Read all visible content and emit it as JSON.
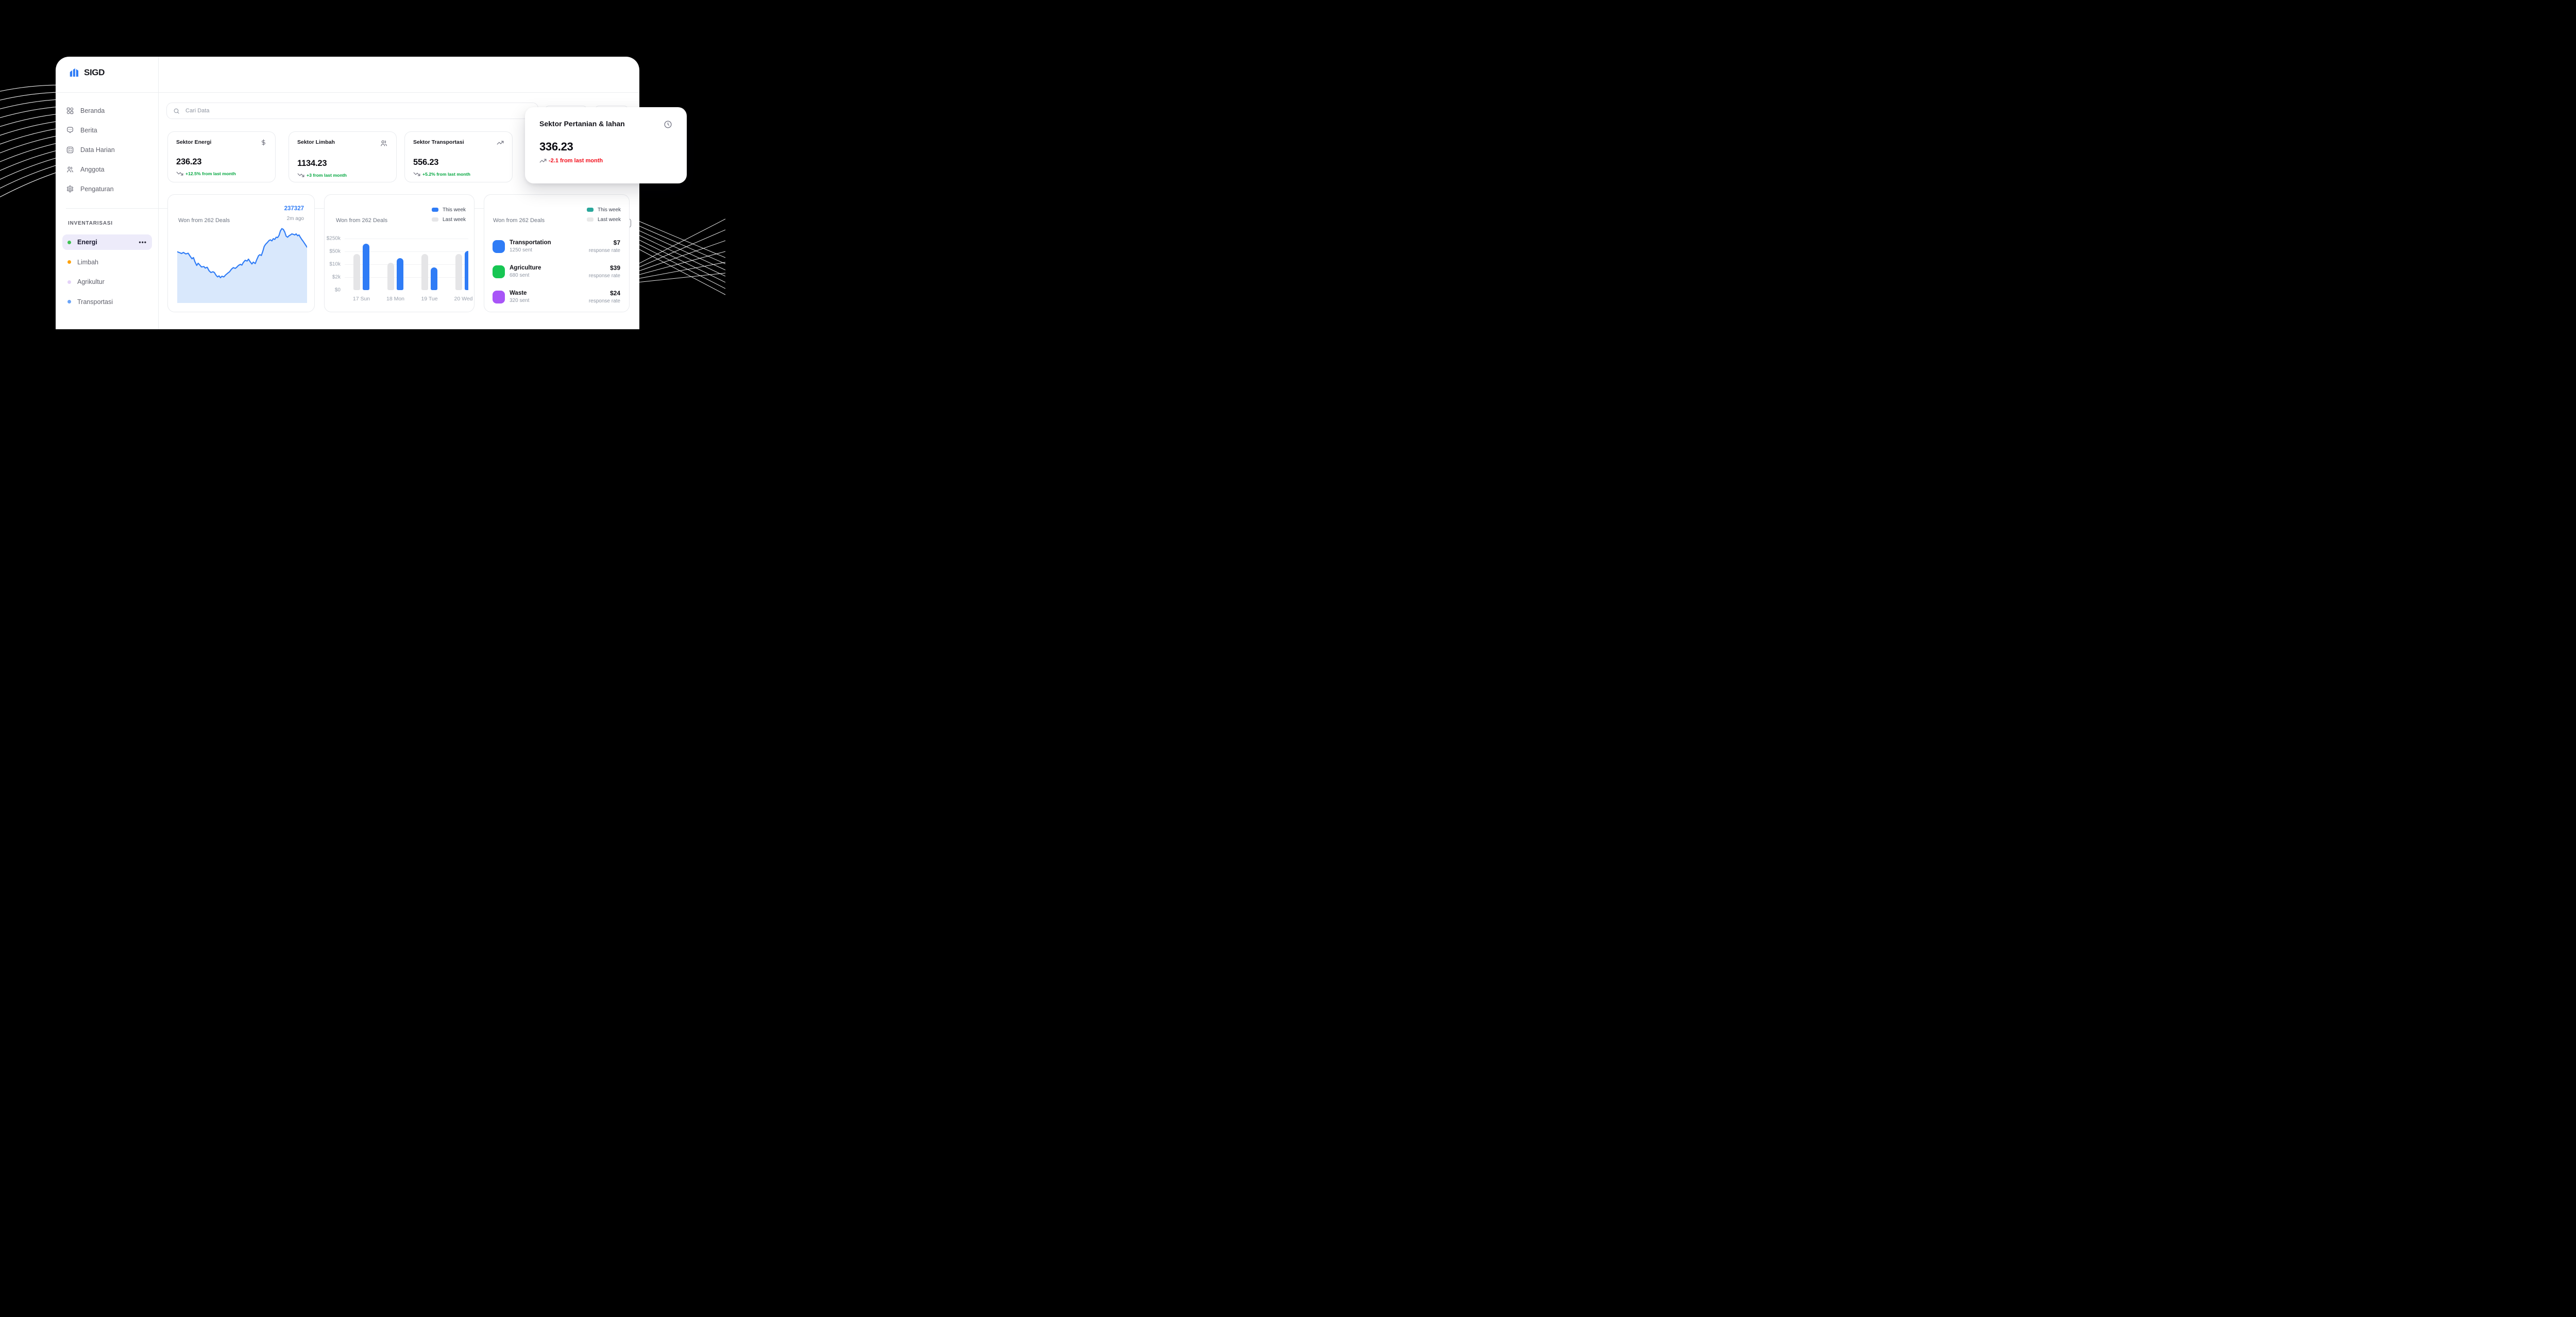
{
  "app": {
    "brand": "SIGD"
  },
  "colors": {
    "accent_blue": "#2f7cf6",
    "fill_blue": "#d9e8fc",
    "green": "#00a63e",
    "red": "#f20d1a",
    "teal": "#2aa79b",
    "gray_bar": "#e5e5e7"
  },
  "sidebar": {
    "menu": [
      {
        "id": "beranda",
        "label": "Beranda",
        "icon": "grid"
      },
      {
        "id": "berita",
        "label": "Berita",
        "icon": "chat"
      },
      {
        "id": "data-harian",
        "label": "Data Harian",
        "icon": "checklist"
      },
      {
        "id": "anggota",
        "label": "Anggota",
        "icon": "users"
      },
      {
        "id": "pengaturan",
        "label": "Pengaturan",
        "icon": "gear"
      }
    ],
    "section_label": "INVENTARISASI",
    "inventory": [
      {
        "id": "energi",
        "label": "Energi",
        "dot": "#3fc251",
        "active": true
      },
      {
        "id": "limbah",
        "label": "Limbah",
        "dot": "#ffa20d",
        "active": false
      },
      {
        "id": "agrikultur",
        "label": "Agrikultur",
        "dot": "#e4d2f8",
        "active": false
      },
      {
        "id": "transportasi",
        "label": "Transportasi",
        "dot": "#6aa4f8",
        "active": false
      }
    ]
  },
  "search": {
    "placeholder": "Cari Data"
  },
  "stat_cards": [
    {
      "title": "Sektor Energi",
      "icon": "dollar",
      "value": "236.23",
      "delta": "+12.5% from last month",
      "trend": "down",
      "delta_color": "#00a63e"
    },
    {
      "title": "Sektor Limbah",
      "icon": "users",
      "value": "1134.23",
      "delta": "+3 from last month",
      "trend": "down",
      "delta_color": "#00a63e"
    },
    {
      "title": "Sektor Transportasi",
      "icon": "trend-up",
      "value": "556.23",
      "delta": "+5.2% from last month",
      "trend": "down",
      "delta_color": "#00a63e"
    }
  ],
  "highlight_card": {
    "title": "Sektor Pertanian & lahan",
    "icon": "clock",
    "value": "336.23",
    "delta": "-2.1 from last month",
    "trend": "up",
    "delta_color": "#f20d1a"
  },
  "chart_data": [
    {
      "type": "area",
      "title": "Won from 262 Deals",
      "current_value": "237327",
      "updated": "2m ago",
      "line_color": "#2f7cf6",
      "fill_color": "#d9e8fc",
      "grid": false,
      "points_pct": [
        [
          0,
          33.7
        ],
        [
          2,
          35
        ],
        [
          3.3,
          36
        ],
        [
          4.8,
          34.6
        ],
        [
          6.6,
          36.5
        ],
        [
          8.4,
          35.6
        ],
        [
          10.3,
          40.4
        ],
        [
          11.4,
          42.8
        ],
        [
          12.5,
          41.3
        ],
        [
          13.6,
          46.6
        ],
        [
          15,
          51.4
        ],
        [
          16.1,
          48.6
        ],
        [
          17.2,
          50.5
        ],
        [
          18.7,
          53.4
        ],
        [
          20.5,
          52.9
        ],
        [
          21.6,
          54.8
        ],
        [
          23.1,
          53.8
        ],
        [
          24.5,
          58.2
        ],
        [
          26,
          60.6
        ],
        [
          27.5,
          59.6
        ],
        [
          28.6,
          60.6
        ],
        [
          30,
          64.4
        ],
        [
          31.1,
          66.3
        ],
        [
          32.2,
          64.9
        ],
        [
          33.3,
          67.3
        ],
        [
          34.4,
          65.4
        ],
        [
          35.9,
          66.3
        ],
        [
          37.4,
          63.5
        ],
        [
          38.8,
          61.5
        ],
        [
          40.3,
          59.6
        ],
        [
          41.8,
          56.3
        ],
        [
          43.2,
          54.3
        ],
        [
          44.7,
          55.3
        ],
        [
          45.8,
          53.8
        ],
        [
          47.2,
          51.4
        ],
        [
          48.7,
          50
        ],
        [
          49.8,
          51
        ],
        [
          50.9,
          47.6
        ],
        [
          52.4,
          44.7
        ],
        [
          53.8,
          45.7
        ],
        [
          54.9,
          43.3
        ],
        [
          56,
          46.2
        ],
        [
          57.5,
          49.5
        ],
        [
          58.6,
          47.1
        ],
        [
          60.1,
          49
        ],
        [
          61.2,
          44.2
        ],
        [
          62.6,
          38.9
        ],
        [
          63.7,
          37.5
        ],
        [
          64.8,
          38.5
        ],
        [
          65.9,
          33.2
        ],
        [
          67,
          26.9
        ],
        [
          68.1,
          24
        ],
        [
          69.2,
          22.1
        ],
        [
          70.7,
          19.2
        ],
        [
          71.8,
          18.3
        ],
        [
          72.9,
          19.7
        ],
        [
          74,
          16.8
        ],
        [
          75.1,
          17.8
        ],
        [
          76.2,
          14.9
        ],
        [
          77.3,
          15.4
        ],
        [
          78.4,
          12.5
        ],
        [
          79.5,
          6.7
        ],
        [
          80.6,
          3.8
        ],
        [
          81.7,
          4.8
        ],
        [
          82.8,
          8.2
        ],
        [
          83.9,
          13.5
        ],
        [
          85,
          14.9
        ],
        [
          86.1,
          13
        ],
        [
          87.2,
          12
        ],
        [
          88.3,
          10.6
        ],
        [
          89.4,
          11.2
        ],
        [
          90.5,
          12
        ],
        [
          91.6,
          10.6
        ],
        [
          92.7,
          13
        ],
        [
          93.8,
          12
        ],
        [
          94.8,
          14.9
        ],
        [
          95.9,
          17.8
        ],
        [
          97,
          20.2
        ],
        [
          98.5,
          24
        ],
        [
          100,
          27.9
        ]
      ]
    },
    {
      "type": "bar",
      "title": "Won from 262 Deals",
      "legend": [
        {
          "label": "This week",
          "color": "#2f7cf6"
        },
        {
          "label": "Last week",
          "color": "#e5e5e7"
        }
      ],
      "categories": [
        "17 Sun",
        "18 Mon",
        "19 Tue",
        "20 Wed"
      ],
      "series": [
        {
          "name": "Last week",
          "color": "#e5e5e7",
          "values": [
            42000,
            15000,
            42000,
            42000
          ]
        },
        {
          "name": "This week",
          "color": "#2f7cf6",
          "values": [
            170000,
            30000,
            8000,
            60000
          ]
        }
      ],
      "y_ticks": [
        {
          "label": "$250k",
          "value": 250000
        },
        {
          "label": "$50k",
          "value": 50000
        },
        {
          "label": "$10k",
          "value": 10000
        },
        {
          "label": "$2k",
          "value": 2000
        },
        {
          "label": "$0",
          "value": 0
        }
      ],
      "scale_breakpoints": [
        0,
        2000,
        10000,
        50000,
        250000
      ],
      "grid": true,
      "legend_position": "top-right"
    },
    {
      "type": "table",
      "title": "Won from 262 Deals",
      "legend": [
        {
          "label": "This week",
          "color": "#2aa79b"
        },
        {
          "label": "Last week",
          "color": "#e8e8e8"
        }
      ],
      "rows": [
        {
          "name": "Transportation",
          "sent": "1250 sent",
          "value": "$7",
          "value_sub": "response rate",
          "color": "#2f7cf6"
        },
        {
          "name": "Agriculture",
          "sent": "680 sent",
          "value": "$39",
          "value_sub": "response rate",
          "color": "#17c653"
        },
        {
          "name": "Waste",
          "sent": "320 sent",
          "value": "$24",
          "value_sub": "response rate",
          "color": "#a855f7"
        }
      ]
    }
  ]
}
